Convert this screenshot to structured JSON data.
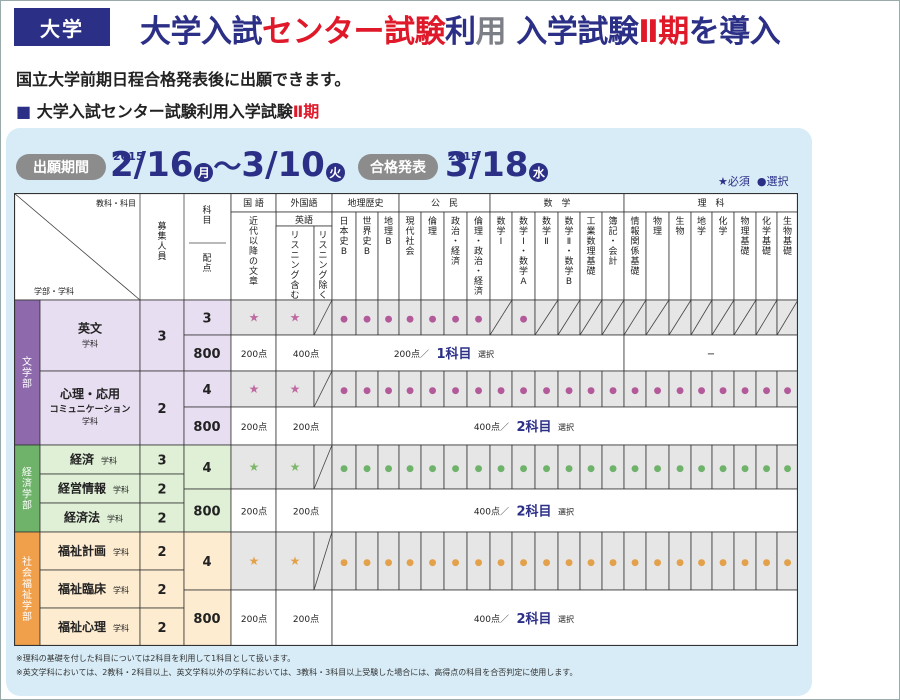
{
  "header": {
    "badge": "大学",
    "title_a": "大学入試",
    "title_b": "センター試験",
    "title_c": "利",
    "title_d": "用",
    "title_e": " 入学試験",
    "title_f": "Ⅱ期",
    "title_g": "を導入"
  },
  "subtitle": "国立大学前期日程合格発表後に出願できます。",
  "section": {
    "square": "■",
    "text": "大学入試センター試験利用入学試験",
    "roman": "Ⅱ期"
  },
  "schedule": {
    "application_label": "出願期間",
    "application_year": "2015",
    "application_start": "2/16",
    "application_start_day": "月",
    "application_tilde": "〜",
    "application_end": "3/10",
    "application_end_day": "火",
    "result_label": "合格発表",
    "result_year": "2015",
    "result_date": "3/18",
    "result_day": "水"
  },
  "legend": {
    "required": "★必須",
    "optional": "●選択"
  },
  "table": {
    "corner_top": "教科・科目",
    "corner_bottom": "学部・学科",
    "capacity": "募集人員",
    "subjects_count": "科目",
    "points": "配点",
    "groups": [
      "国 語",
      "外国語",
      "地理歴史",
      "公　民",
      "数　学",
      "理　科"
    ],
    "english_group": "英語",
    "subjects": [
      "近代以降の文章",
      "リスニング含む",
      "リスニング除く",
      "日本史B",
      "世界史B",
      "地理B",
      "現代社会",
      "倫理",
      "政治・経済",
      "倫理・政治・経済",
      "数学Ⅰ",
      "数学Ⅰ・数学A",
      "数学Ⅱ",
      "数学Ⅱ・数学B",
      "工業数理基礎",
      "簿記・会計",
      "情報関係基礎",
      "物理",
      "生物",
      "地学",
      "化学",
      "物理基礎",
      "化学基礎",
      "生物基礎",
      "地学基礎"
    ],
    "faculties": [
      {
        "name": "文学部",
        "color": "#8e6aac",
        "cell": "#e8def2",
        "depts": [
          {
            "name": "英文",
            "suffix": "学科",
            "cap": "3"
          },
          {
            "name": "心理・応用",
            "name2": "コミュニケーション",
            "suffix": "学科",
            "cap": "2"
          }
        ],
        "rows": [
          {
            "count": "3",
            "pts": "800",
            "kokugo_pts": "200点",
            "eigo_pts": "400点",
            "mid": "200点／",
            "mid_big": "1科目",
            "mid_sel": "選択",
            "sci": "−"
          },
          {
            "count": "4",
            "pts": "800",
            "kokugo_pts": "200点",
            "eigo_pts": "200点",
            "mid": "400点／",
            "mid_big": "2科目",
            "mid_sel": "選択"
          }
        ]
      },
      {
        "name": "経済学部",
        "color": "#6fb36b",
        "cell": "#dff0d6",
        "depts": [
          {
            "name": "経済",
            "suffix": "学科",
            "cap": "3"
          },
          {
            "name": "経営情報",
            "suffix": "学科",
            "cap": "2"
          },
          {
            "name": "経済法",
            "suffix": "学科",
            "cap": "2"
          }
        ],
        "rows": [
          {
            "count": "4",
            "pts": "800",
            "kokugo_pts": "200点",
            "eigo_pts": "200点",
            "mid": "400点／",
            "mid_big": "2科目",
            "mid_sel": "選択"
          }
        ]
      },
      {
        "name": "社会福祉学部",
        "color": "#f0a04b",
        "cell": "#fdecd0",
        "depts": [
          {
            "name": "福祉計画",
            "suffix": "学科",
            "cap": "2"
          },
          {
            "name": "福祉臨床",
            "suffix": "学科",
            "cap": "2"
          },
          {
            "name": "福祉心理",
            "suffix": "学科",
            "cap": "2"
          }
        ],
        "rows": [
          {
            "count": "4",
            "pts": "800",
            "kokugo_pts": "200点",
            "eigo_pts": "200点",
            "mid": "400点／",
            "mid_big": "2科目",
            "mid_sel": "選択"
          }
        ]
      }
    ],
    "star": "★",
    "dot": "●"
  },
  "notes": [
    "※理科の基礎を付した科目については2科目を利用して1科目として扱います。",
    "※英文学科においては、2教科・2科目以上、英文学科以外の学科においては、3教科・3科目以上受験した場合には、高得点の科目を合否判定に使用します。"
  ],
  "colors": {
    "navy": "#2b2f86",
    "red": "#e0192a",
    "purple_dot": "#b35b9a",
    "purple_star": "#c06aa2",
    "green_dot": "#6fb36b",
    "green_star": "#7fb76a",
    "orange_dot": "#e3a14b",
    "orange_star": "#e3a14b"
  }
}
